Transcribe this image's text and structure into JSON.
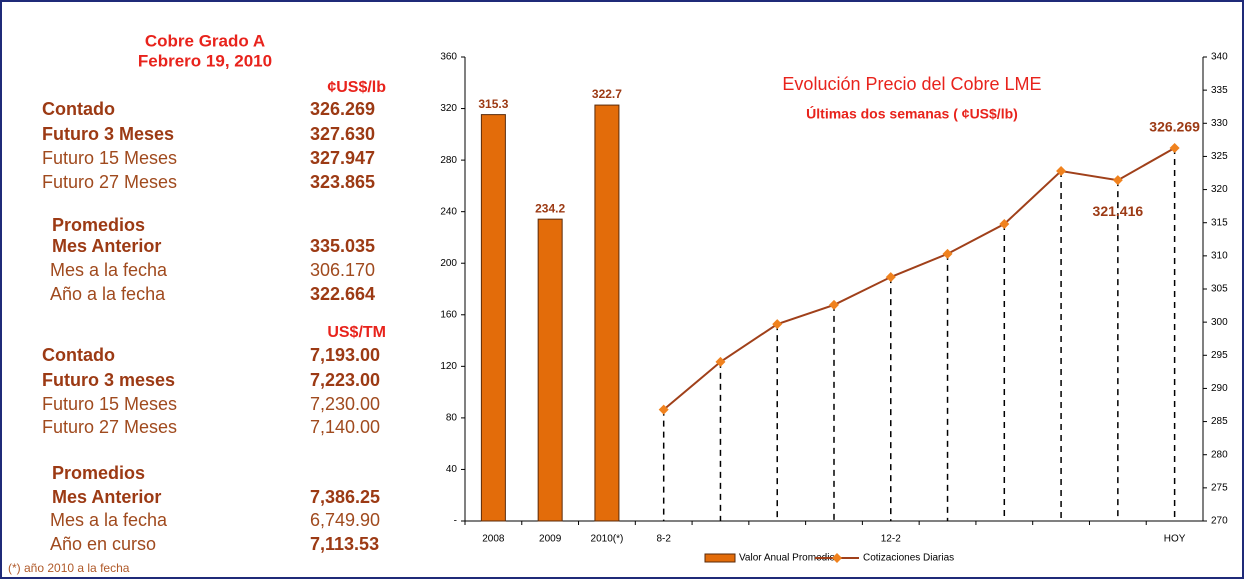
{
  "panel": {
    "title": "Cobre Grado A",
    "date": "Febrero 19, 2010",
    "sections": [
      {
        "unit": "¢US$/lb",
        "rows": [
          {
            "label": "Contado",
            "value": "326.269",
            "label_bold": true,
            "value_bold": true
          },
          {
            "label": "Futuro 3 Meses",
            "value": "327.630",
            "label_bold": true,
            "value_bold": true
          },
          {
            "label": "Futuro 15 Meses",
            "value": "327.947",
            "label_bold": false,
            "value_bold": true
          },
          {
            "label": "Futuro 27 Meses",
            "value": "323.865",
            "label_bold": false,
            "value_bold": true
          }
        ],
        "averages_title": "Promedios",
        "averages": [
          {
            "label": "Mes Anterior",
            "value": "335.035",
            "label_bold": true,
            "value_bold": true
          },
          {
            "label": "Mes a la fecha",
            "value": "306.170",
            "label_bold": false,
            "value_bold": false
          },
          {
            "label": "Año a la fecha",
            "value": "322.664",
            "label_bold": false,
            "value_bold": true
          }
        ]
      },
      {
        "unit": "US$/TM",
        "rows": [
          {
            "label": "Contado",
            "value": "7,193.00",
            "label_bold": true,
            "value_bold": true
          },
          {
            "label": "Futuro 3 meses",
            "value": "7,223.00",
            "label_bold": true,
            "value_bold": true
          },
          {
            "label": "Futuro 15 Meses",
            "value": "7,230.00",
            "label_bold": false,
            "value_bold": false
          },
          {
            "label": "Futuro 27 Meses",
            "value": "7,140.00",
            "label_bold": false,
            "value_bold": false
          }
        ],
        "averages_title": "Promedios",
        "averages": [
          {
            "label": "Mes Anterior",
            "value": "7,386.25",
            "label_bold": true,
            "value_bold": true
          },
          {
            "label": "Mes a la fecha",
            "value": "6,749.90",
            "label_bold": false,
            "value_bold": false
          },
          {
            "label": "Año en curso",
            "value": "7,113.53",
            "label_bold": false,
            "value_bold": true
          }
        ]
      }
    ],
    "footnote": "(*) año 2010 a la fecha"
  },
  "chart_data": {
    "type": "bar-line",
    "title": "Evolución Precio del Cobre LME",
    "subtitle": "Últimas dos semanas ( ¢US$/lb)",
    "categories": [
      "2008",
      "2009",
      "2010(*)",
      "8-2",
      null,
      null,
      null,
      "12-2",
      null,
      null,
      null,
      null,
      "HOY"
    ],
    "series": [
      {
        "name": "Valor Anual Promedio",
        "type": "bar",
        "color": "#e36c0a",
        "values": [
          315.3,
          234.2,
          322.7,
          null,
          null,
          null,
          null,
          null,
          null,
          null,
          null,
          null,
          null
        ]
      },
      {
        "name": "Cotizaciones Diarias",
        "type": "line",
        "axis": "y2",
        "color": "#a0401a",
        "marker_color": "#f0821e",
        "values": [
          null,
          null,
          null,
          286.8,
          294.0,
          299.7,
          302.6,
          306.8,
          310.3,
          314.8,
          322.8,
          321.416,
          326.269
        ],
        "value_labels": [
          null,
          null,
          null,
          null,
          null,
          null,
          null,
          null,
          null,
          null,
          null,
          "321.416",
          "326.269"
        ]
      }
    ],
    "ylim": [
      0,
      360
    ],
    "yticks": [
      {
        "value": 0,
        "label": "-"
      },
      40,
      80,
      120,
      160,
      200,
      240,
      280,
      320,
      360
    ],
    "y2lim": [
      270,
      340
    ],
    "y2ticks": [
      270,
      275,
      280,
      285,
      290,
      295,
      300,
      305,
      310,
      315,
      320,
      325,
      330,
      335,
      340
    ],
    "legend": "bottom"
  }
}
